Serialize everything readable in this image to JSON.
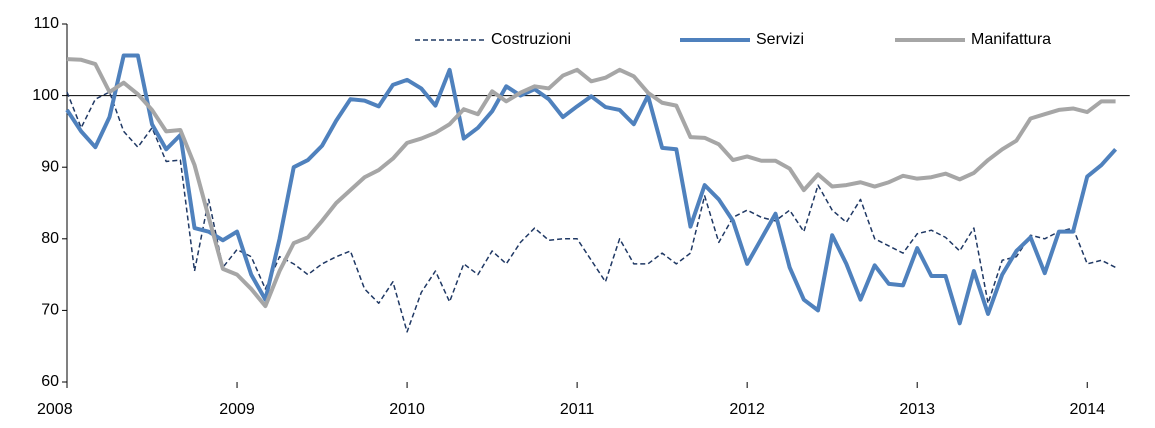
{
  "chart_data": {
    "type": "line",
    "categories": [
      "2008",
      null,
      null,
      null,
      null,
      null,
      null,
      null,
      null,
      null,
      null,
      null,
      "2009",
      null,
      null,
      null,
      null,
      null,
      null,
      null,
      null,
      null,
      null,
      null,
      "2010",
      null,
      null,
      null,
      null,
      null,
      null,
      null,
      null,
      null,
      null,
      null,
      "2011",
      null,
      null,
      null,
      null,
      null,
      null,
      null,
      null,
      null,
      null,
      null,
      "2012",
      null,
      null,
      null,
      null,
      null,
      null,
      null,
      null,
      null,
      null,
      null,
      "2013",
      null,
      null,
      null,
      null,
      null,
      null,
      null,
      null,
      null,
      null,
      null,
      "2014",
      null,
      null
    ],
    "series": [
      {
        "name": "Costruzioni",
        "color": "#1f3864",
        "dash": true,
        "width": 1.5,
        "values": [
          100.5,
          95.5,
          99.5,
          100.5,
          95,
          92.8,
          95.5,
          90.8,
          91,
          75.5,
          85.5,
          76,
          78.5,
          77.5,
          73,
          77.5,
          76.5,
          75,
          76.5,
          77.5,
          78.3,
          73,
          71,
          74,
          67,
          72.5,
          75.5,
          71.2,
          76.5,
          75,
          78.3,
          76.5,
          79.5,
          81.5,
          79.8,
          80,
          80,
          77,
          74,
          80,
          76.5,
          76.5,
          78,
          76.5,
          78,
          86,
          79.5,
          83,
          84,
          83,
          82.5,
          84,
          81,
          87.5,
          84,
          82.3,
          85.5,
          80,
          79,
          78,
          80.7,
          81.2,
          80.2,
          78.3,
          81.5,
          71,
          77,
          77.5,
          80.5,
          80,
          81,
          81.5,
          76.5,
          77,
          76
        ]
      },
      {
        "name": "Servizi",
        "color": "#4f81bd",
        "dash": false,
        "width": 4,
        "values": [
          98,
          95,
          92.8,
          97,
          105.6,
          105.6,
          96,
          92.5,
          94.5,
          81.5,
          81,
          79.8,
          81,
          75,
          71.5,
          80,
          90,
          91,
          93,
          96.5,
          99.5,
          99.3,
          98.5,
          101.5,
          102.2,
          101,
          98.6,
          103.6,
          94,
          95.5,
          97.8,
          101.3,
          100,
          100.9,
          99.5,
          97,
          98.5,
          99.9,
          98.4,
          98,
          96,
          100,
          92.7,
          92.5,
          81.7,
          87.5,
          85.5,
          82.5,
          76.5,
          80,
          83.5,
          76,
          71.5,
          70,
          80.5,
          76.5,
          71.5,
          76.3,
          73.7,
          73.5,
          78.7,
          74.8,
          74.8,
          68.2,
          75.5,
          69.5,
          75,
          78.3,
          80.2,
          75.2,
          81,
          81,
          88.7,
          90.3,
          92.5
        ]
      },
      {
        "name": "Manifattura",
        "color": "#a6a6a6",
        "dash": false,
        "width": 4,
        "values": [
          105.1,
          105,
          104.4,
          100.5,
          101.8,
          100.2,
          98,
          95,
          95.2,
          90.3,
          83,
          75.8,
          75,
          73,
          70.6,
          75.5,
          79.4,
          80.2,
          82.5,
          85,
          86.8,
          88.6,
          89.6,
          91.2,
          93.4,
          94,
          94.8,
          96,
          98.1,
          97.4,
          100.6,
          99.2,
          100.4,
          101.3,
          101,
          102.8,
          103.6,
          102,
          102.5,
          103.6,
          102.7,
          100.4,
          99,
          98.6,
          94.2,
          94.1,
          93.2,
          91,
          91.5,
          90.9,
          90.9,
          89.8,
          86.8,
          89,
          87.3,
          87.5,
          87.9,
          87.3,
          87.9,
          88.8,
          88.4,
          88.6,
          89.1,
          88.3,
          89.2,
          91,
          92.5,
          93.7,
          96.8,
          97.4,
          98,
          98.2,
          97.7,
          99.2,
          99.2
        ]
      }
    ],
    "ylim": [
      60,
      110
    ],
    "yticks": [
      60,
      70,
      80,
      90,
      100,
      110
    ],
    "x_axis_crosses": 100,
    "grid": false,
    "legend": "top"
  }
}
